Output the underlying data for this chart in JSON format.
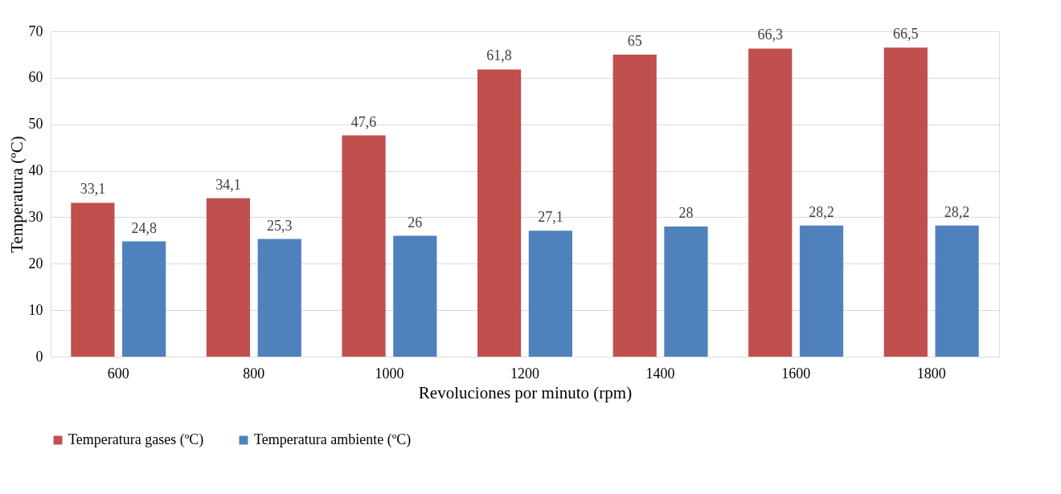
{
  "chart_data": {
    "type": "bar",
    "xlabel": "Revoluciones por minuto (rpm)",
    "ylabel": "Temperatura (ºC)",
    "categories": [
      "600",
      "800",
      "1000",
      "1200",
      "1400",
      "1600",
      "1800"
    ],
    "series": [
      {
        "name": "Temperatura gases (ºC)",
        "color": "#c0504d",
        "values": [
          33.1,
          34.1,
          47.6,
          61.8,
          65,
          66.3,
          66.5
        ],
        "value_labels": [
          "33,1",
          "34,1",
          "47,6",
          "61,8",
          "65",
          "66,3",
          "66,5"
        ]
      },
      {
        "name": "Temperatura ambiente (ºC)",
        "color": "#4f81bd",
        "values": [
          24.8,
          25.3,
          26,
          27.1,
          28,
          28.2,
          28.2
        ],
        "value_labels": [
          "24,8",
          "25,3",
          "26",
          "27,1",
          "28",
          "28,2",
          "28,2"
        ]
      }
    ],
    "ylim": [
      0,
      70
    ],
    "yticks": [
      0,
      10,
      20,
      30,
      40,
      50,
      60,
      70
    ],
    "grid": "y",
    "legend": "bottom"
  }
}
